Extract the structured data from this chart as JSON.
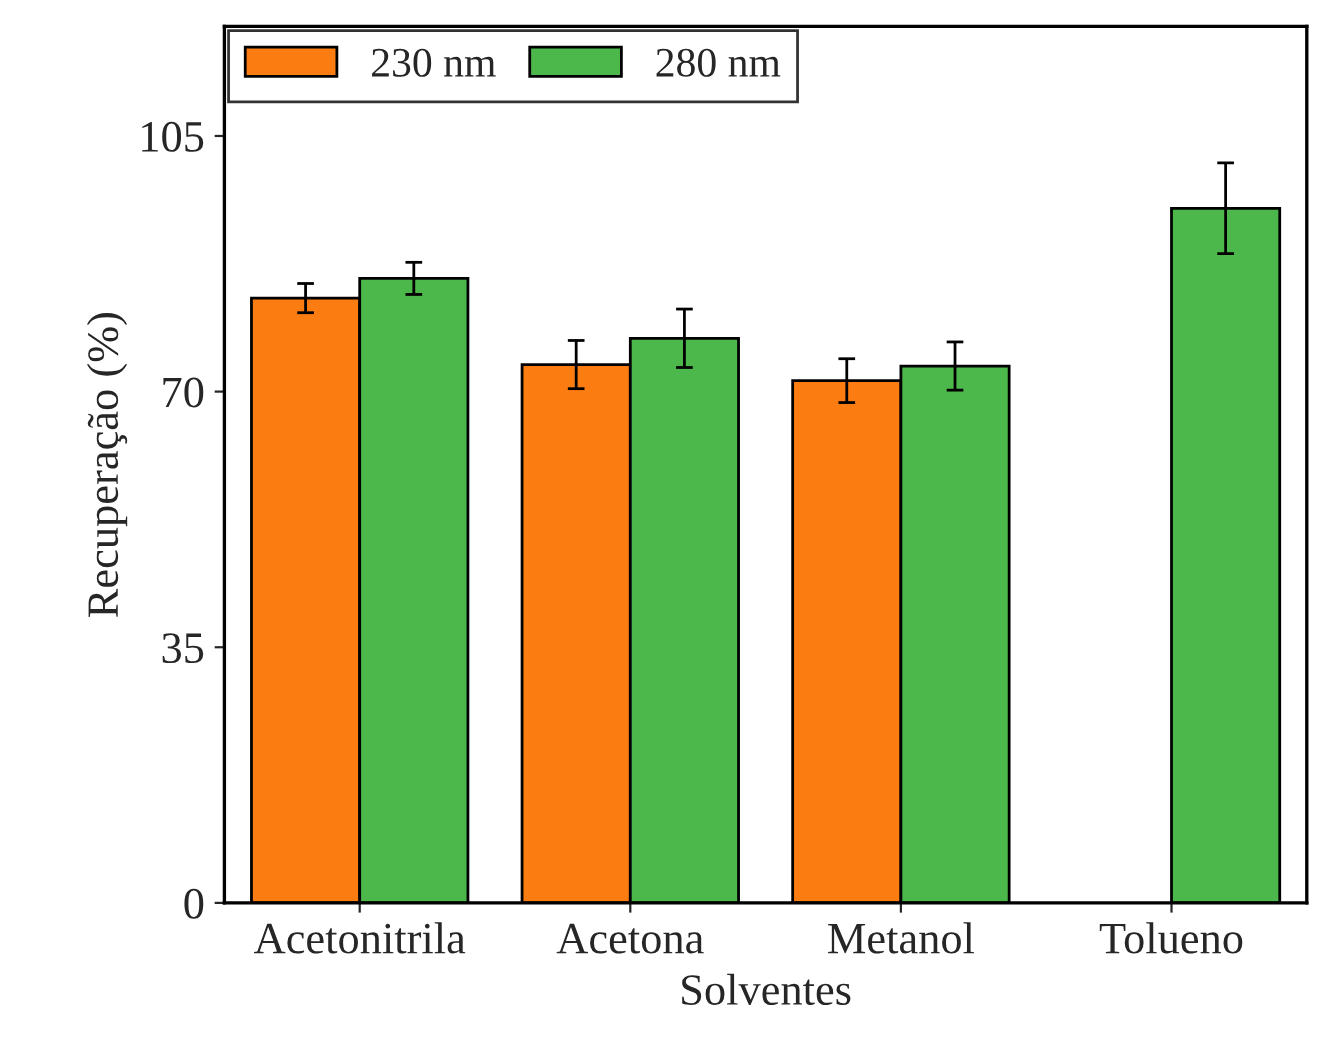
{
  "chart_data": {
    "type": "bar",
    "xlabel": "Solventes",
    "ylabel": "Recuperação (%)",
    "categories": [
      "Acetonitrila",
      "Acetona",
      "Metanol",
      "Tolueno"
    ],
    "series": [
      {
        "name": "230 nm",
        "color": "#fb7d12",
        "values": [
          82.8,
          73.7,
          71.5,
          null
        ],
        "errors": [
          2.0,
          3.3,
          3.0,
          null
        ]
      },
      {
        "name": "280 nm",
        "color": "#4cb84c",
        "values": [
          85.5,
          77.3,
          73.5,
          95.1
        ],
        "errors": [
          2.2,
          4.0,
          3.3,
          6.2
        ]
      }
    ],
    "ylim": [
      0,
      120
    ],
    "yticks": [
      0,
      35,
      70,
      105
    ],
    "grid": false,
    "legend": "top left"
  }
}
